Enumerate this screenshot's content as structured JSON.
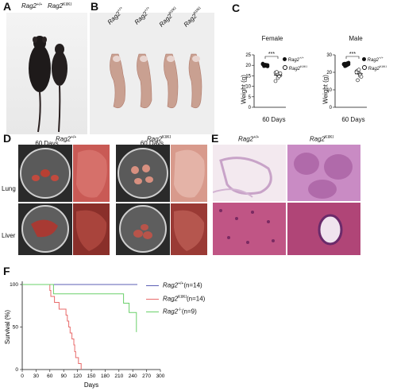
{
  "panels": {
    "A": {
      "label": "A",
      "genotype_labels": [
        "Rag2",
        "+/+",
        "Rag2",
        "KI/KI"
      ],
      "caption": "60 Days"
    },
    "B": {
      "label": "B",
      "genotype_labels": [
        "Rag2",
        "+/+",
        "Rag2",
        "+/+",
        "Rag2",
        "KI/KI",
        "Rag2",
        "KI/KI"
      ],
      "caption": "60 Days"
    },
    "C": {
      "label": "C",
      "female_title": "Female",
      "male_title": "Male",
      "ylabel": "Weight (g)",
      "xcaption": "60 Days",
      "sig": "***",
      "legend": [
        {
          "gene": "Rag2",
          "sup": "+/+"
        },
        {
          "gene": "Rag2",
          "sup": "KI/KI"
        }
      ]
    },
    "D": {
      "label": "D",
      "col1": {
        "gene": "Rag2",
        "sup": "+/+"
      },
      "col2": {
        "gene": "Rag2",
        "sup": "KI/KI"
      },
      "row1": "Lung",
      "row2": "Liver"
    },
    "E": {
      "label": "E",
      "col1": {
        "gene": "Rag2",
        "sup": "+/+"
      },
      "col2": {
        "gene": "Rag2",
        "sup": "KI/KI"
      }
    },
    "F": {
      "label": "F",
      "legend": [
        {
          "gene": "Rag2",
          "sup": "+/+",
          "suffix": "(n=14)",
          "color": "#5b5fb5"
        },
        {
          "gene": "Rag2",
          "sup": "KI/KI",
          "suffix": "(n=14)",
          "color": "#e86a6a"
        },
        {
          "gene": "Rag2",
          "sup": "-/-",
          "suffix": "(n=9)",
          "color": "#6ad06a"
        }
      ]
    }
  },
  "chart_data": [
    {
      "type": "scatter",
      "title": "Female",
      "ylabel": "Weight (g)",
      "xlabel": "60 Days",
      "ylim": [
        0,
        25
      ],
      "yticks": [
        0,
        5,
        10,
        15,
        20,
        25
      ],
      "series": [
        {
          "name": "Rag2+/+",
          "marker": "filled-circle",
          "values": [
            20.5,
            20.0,
            19.8,
            20.2,
            19.5,
            20.8,
            19.9,
            20.3,
            19.7,
            20.1,
            20.6,
            19.6
          ]
        },
        {
          "name": "Rag2KI/KI",
          "marker": "open-circle",
          "values": [
            16.5,
            15.8,
            14.0,
            16.0,
            15.2,
            12.5,
            16.8,
            15.5,
            14.8,
            16.2
          ]
        }
      ],
      "annotation": "***"
    },
    {
      "type": "scatter",
      "title": "Male",
      "ylabel": "Weight (g)",
      "xlabel": "60 Days",
      "ylim": [
        0,
        30
      ],
      "yticks": [
        0,
        10,
        20,
        30
      ],
      "series": [
        {
          "name": "Rag2+/+",
          "marker": "filled-circle",
          "values": [
            24.5,
            25.0,
            23.8,
            24.2,
            25.5,
            24.8,
            23.5,
            24.0,
            25.2,
            24.6
          ]
        },
        {
          "name": "Rag2KI/KI",
          "marker": "open-circle",
          "values": [
            20.5,
            21.0,
            19.5,
            18.0,
            17.5,
            20.0,
            15.5,
            21.5,
            19.0
          ]
        }
      ],
      "annotation": "***"
    },
    {
      "type": "line",
      "xlabel": "Days",
      "ylabel": "Survival (%)",
      "xlim": [
        0,
        300
      ],
      "ylim": [
        0,
        100
      ],
      "xticks": [
        0,
        30,
        60,
        90,
        120,
        150,
        180,
        210,
        240,
        270,
        300
      ],
      "yticks": [
        0,
        50,
        100
      ],
      "step": true,
      "series": [
        {
          "name": "Rag2+/+",
          "color": "#5b5fb5",
          "points": [
            [
              0,
              100
            ],
            [
              250,
              100
            ]
          ]
        },
        {
          "name": "Rag2KI/KI",
          "color": "#e86a6a",
          "points": [
            [
              0,
              100
            ],
            [
              60,
              100
            ],
            [
              60,
              93
            ],
            [
              62,
              93
            ],
            [
              62,
              86
            ],
            [
              70,
              86
            ],
            [
              70,
              79
            ],
            [
              80,
              79
            ],
            [
              80,
              71
            ],
            [
              95,
              71
            ],
            [
              95,
              64
            ],
            [
              98,
              64
            ],
            [
              98,
              57
            ],
            [
              101,
              57
            ],
            [
              101,
              50
            ],
            [
              104,
              50
            ],
            [
              104,
              43
            ],
            [
              108,
              43
            ],
            [
              108,
              36
            ],
            [
              112,
              36
            ],
            [
              112,
              29
            ],
            [
              114,
              29
            ],
            [
              114,
              21
            ],
            [
              116,
              21
            ],
            [
              116,
              14
            ],
            [
              122,
              14
            ],
            [
              122,
              7
            ],
            [
              128,
              7
            ],
            [
              128,
              0
            ]
          ]
        },
        {
          "name": "Rag2-/-",
          "color": "#6ad06a",
          "points": [
            [
              0,
              100
            ],
            [
              68,
              100
            ],
            [
              68,
              89
            ],
            [
              220,
              89
            ],
            [
              220,
              78
            ],
            [
              232,
              78
            ],
            [
              232,
              67
            ],
            [
              248,
              67
            ],
            [
              248,
              44
            ]
          ]
        }
      ]
    }
  ]
}
